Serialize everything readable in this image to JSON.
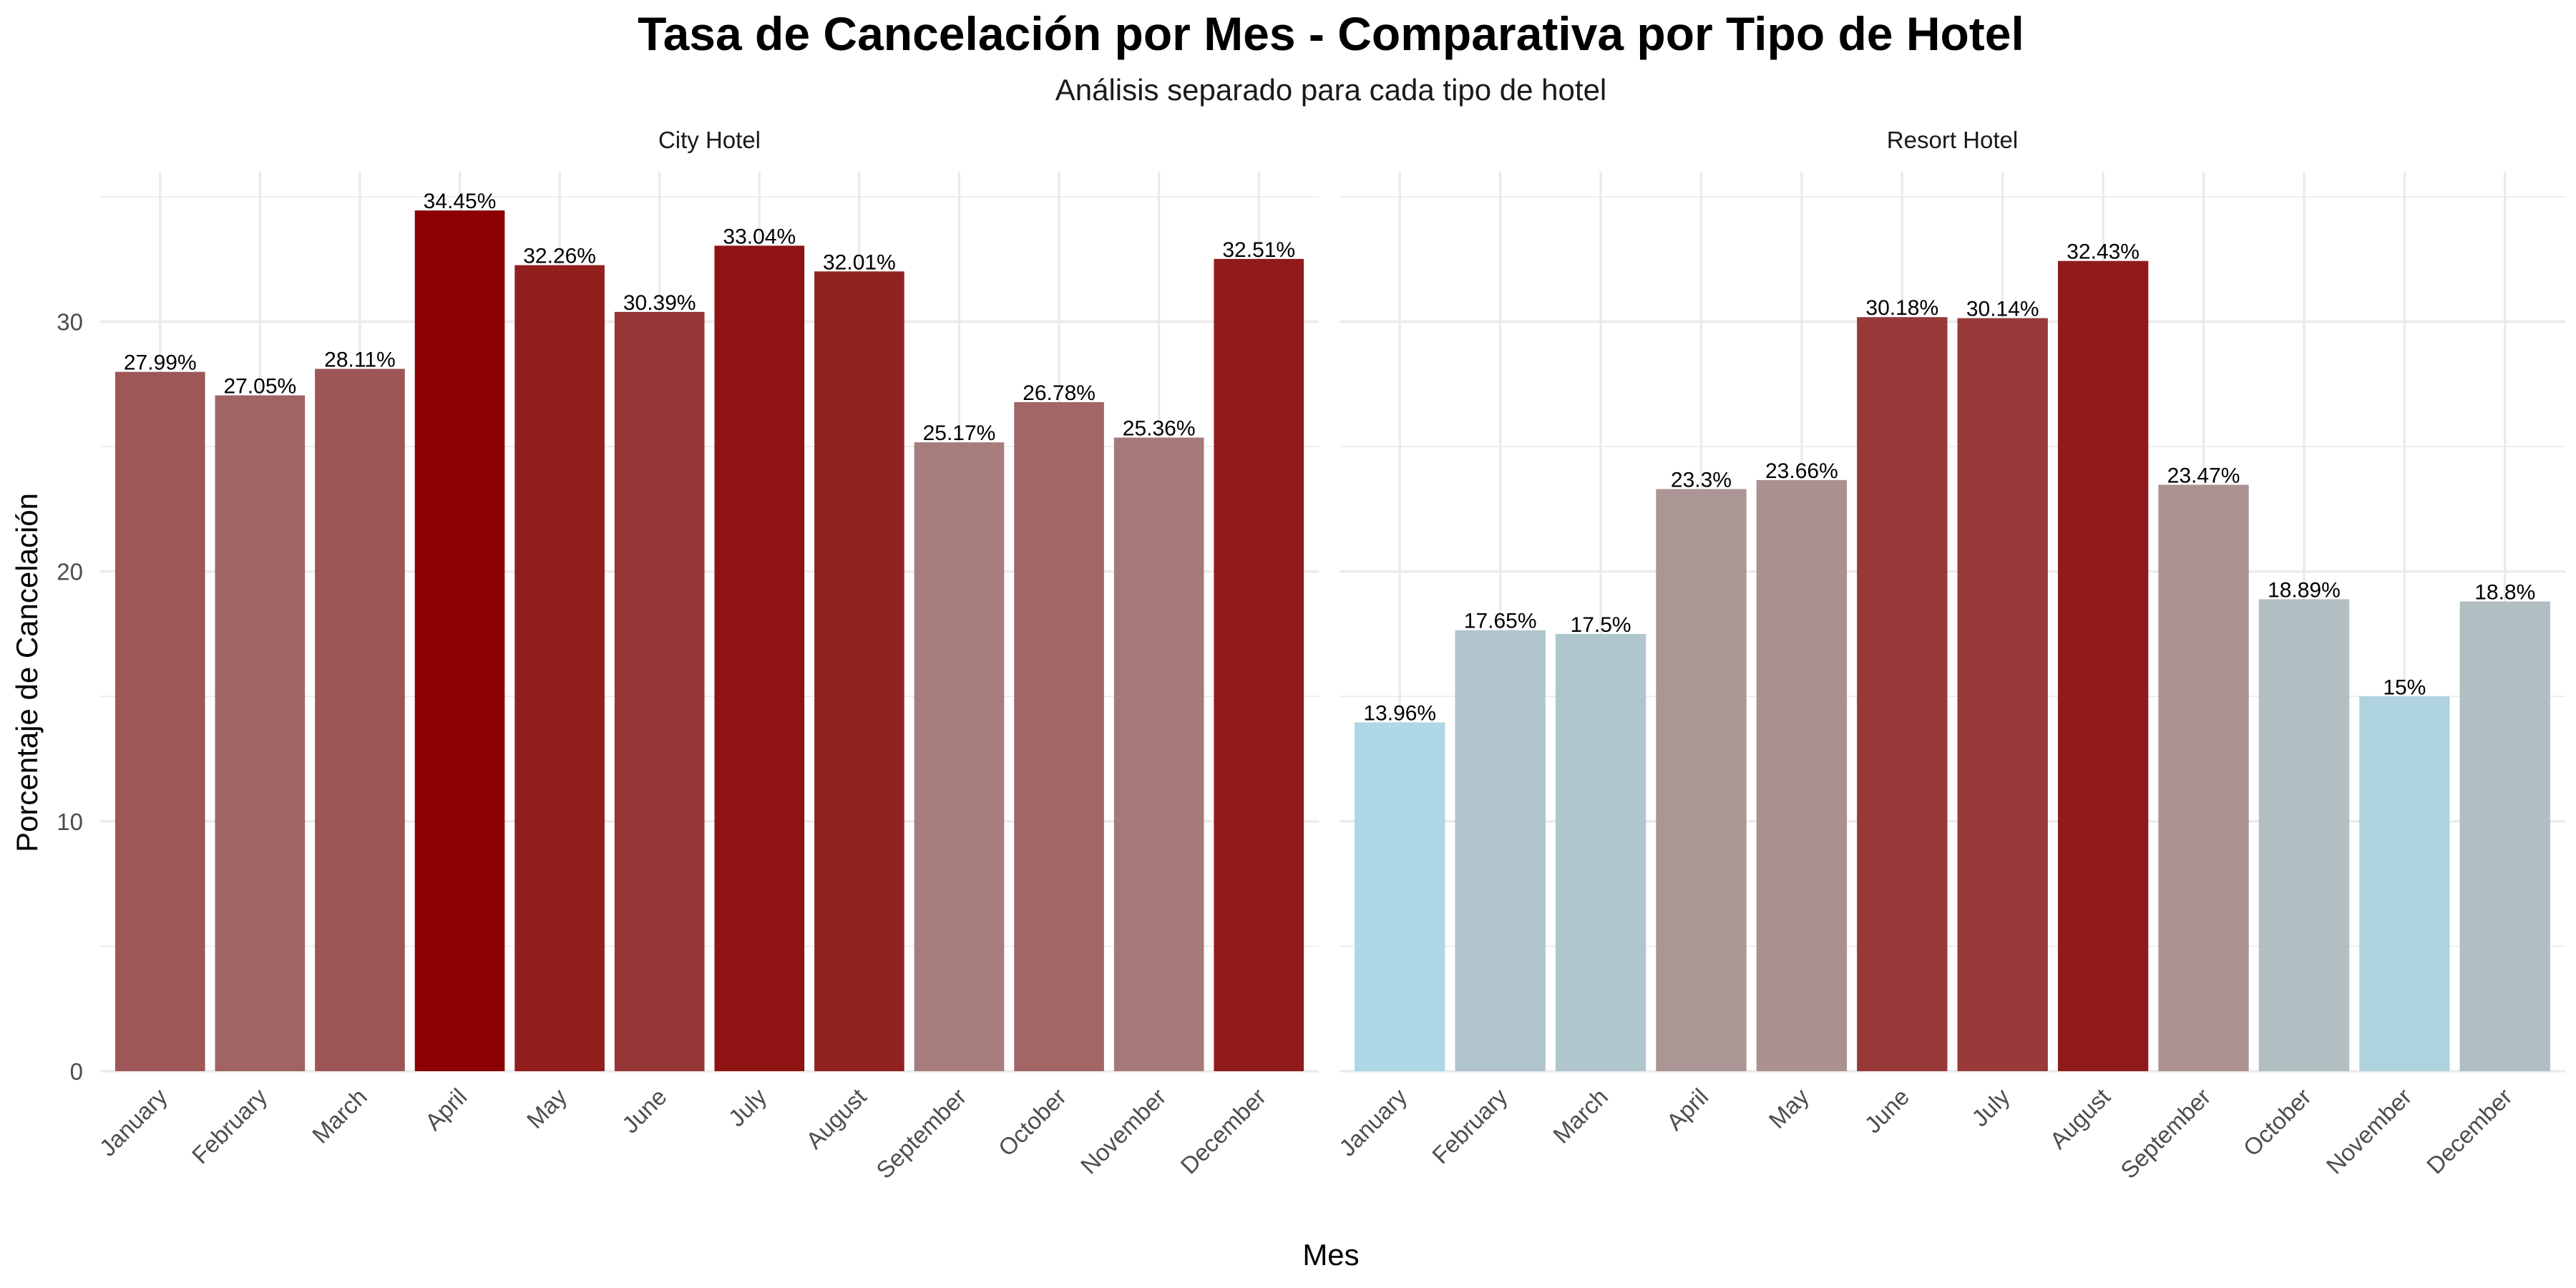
{
  "chart_data": {
    "type": "bar",
    "title": "Tasa de Cancelación por Mes - Comparativa por Tipo de Hotel",
    "subtitle": "Análisis separado para cada tipo de hotel",
    "xlabel": "Mes",
    "ylabel": "Porcentaje de Cancelación",
    "ylim": [
      0,
      36
    ],
    "yticks": [
      0,
      10,
      20,
      30
    ],
    "grid": true,
    "legend": "none",
    "categories": [
      "January",
      "February",
      "March",
      "April",
      "May",
      "June",
      "July",
      "August",
      "September",
      "October",
      "November",
      "December"
    ],
    "color_scale": {
      "low": "#add8e6",
      "mid": "#b3b3b3",
      "high": "#8b0000",
      "low_value": 14,
      "mid_value": 21,
      "high_value": 34.5
    },
    "panels": [
      {
        "name": "City Hotel",
        "values": [
          27.99,
          27.05,
          28.11,
          34.45,
          32.26,
          30.39,
          33.04,
          32.01,
          25.17,
          26.78,
          25.36,
          32.51
        ],
        "labels": [
          "27.99%",
          "27.05%",
          "28.11%",
          "34.45%",
          "32.26%",
          "30.39%",
          "33.04%",
          "32.01%",
          "25.17%",
          "26.78%",
          "25.36%",
          "32.51%"
        ]
      },
      {
        "name": "Resort Hotel",
        "values": [
          13.96,
          17.65,
          17.5,
          23.3,
          23.66,
          30.18,
          30.14,
          32.43,
          23.47,
          18.89,
          15,
          18.8
        ],
        "labels": [
          "13.96%",
          "17.65%",
          "17.5%",
          "23.3%",
          "23.66%",
          "30.18%",
          "30.14%",
          "32.43%",
          "23.47%",
          "18.89%",
          "15%",
          "18.8%"
        ]
      }
    ]
  }
}
